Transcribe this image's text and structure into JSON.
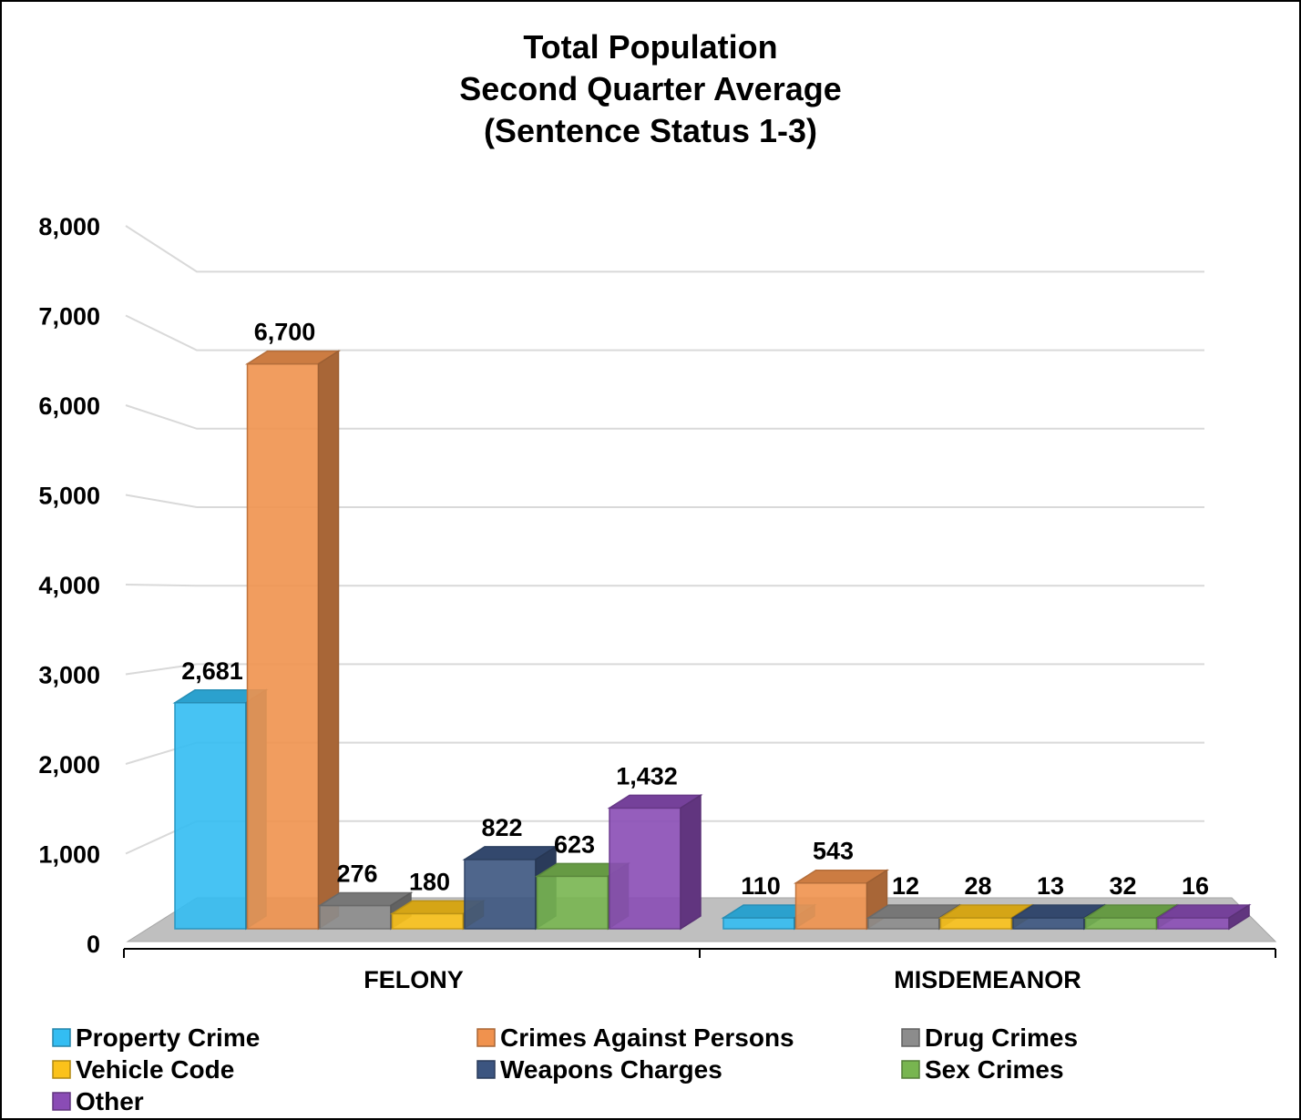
{
  "chart_data": {
    "type": "bar",
    "title": [
      "Total Population",
      "Second Quarter Average",
      "(Sentence Status 1-3)"
    ],
    "categories": [
      "FELONY",
      "MISDEMEANOR"
    ],
    "series": [
      {
        "name": "Property Crime",
        "values": [
          2681,
          110
        ],
        "labels": [
          "2,681",
          "110"
        ],
        "color": "#33BDF2"
      },
      {
        "name": "Crimes Against Persons",
        "values": [
          6700,
          543
        ],
        "labels": [
          "6,700",
          "543"
        ],
        "color": "#F0924E"
      },
      {
        "name": "Drug Crimes",
        "values": [
          276,
          12
        ],
        "labels": [
          "276",
          "12"
        ],
        "color": "#8C8C8C"
      },
      {
        "name": "Vehicle Code",
        "values": [
          180,
          28
        ],
        "labels": [
          "180",
          "28"
        ],
        "color": "#FBC21A"
      },
      {
        "name": "Weapons Charges",
        "values": [
          822,
          13
        ],
        "labels": [
          "822",
          "13"
        ],
        "color": "#3C5580"
      },
      {
        "name": "Sex Crimes",
        "values": [
          623,
          32
        ],
        "labels": [
          "623",
          "32"
        ],
        "color": "#78B550"
      },
      {
        "name": "Other",
        "values": [
          1432,
          16
        ],
        "labels": [
          "1,432",
          "16"
        ],
        "color": "#8A4CB5"
      }
    ],
    "yticks": [
      0,
      1000,
      2000,
      3000,
      4000,
      5000,
      6000,
      7000,
      8000
    ],
    "ytick_labels": [
      "0",
      "1,000",
      "2,000",
      "3,000",
      "4,000",
      "5,000",
      "6,000",
      "7,000",
      "8,000"
    ],
    "ylim": [
      0,
      8000
    ],
    "grid": true,
    "style": "3d-clustered-column",
    "legend": {
      "position": "bottom",
      "columns": 3
    }
  }
}
